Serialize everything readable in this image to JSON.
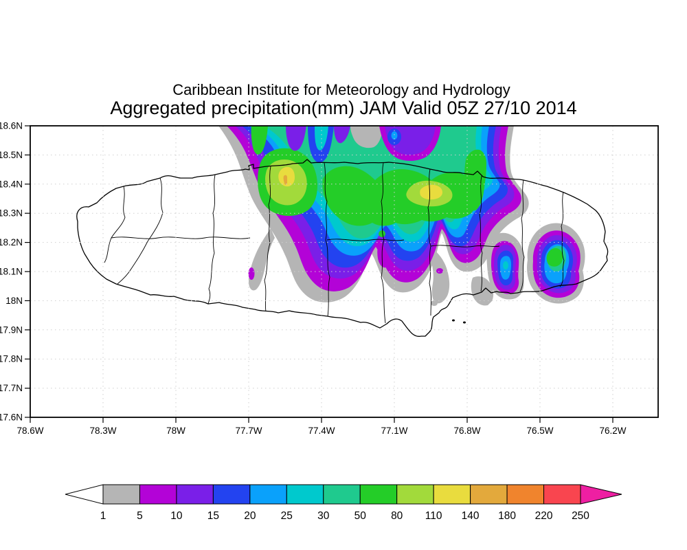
{
  "titles": {
    "line1": "Caribbean Institute for Meteorology and Hydrology",
    "line2": "Aggregated precipitation(mm) JAM Valid 05Z 27/10 2014"
  },
  "axes": {
    "y_labels": [
      "18.6N",
      "18.5N",
      "18.4N",
      "18.3N",
      "18.2N",
      "18.1N",
      "18N",
      "17.9N",
      "17.8N",
      "17.7N",
      "17.6N"
    ],
    "x_labels": [
      "78.6W",
      "78.3W",
      "78W",
      "77.7W",
      "77.4W",
      "77.1W",
      "76.8W",
      "76.5W",
      "76.2W"
    ]
  },
  "legend": {
    "labels": [
      "1",
      "5",
      "10",
      "15",
      "20",
      "25",
      "30",
      "50",
      "80",
      "110",
      "140",
      "180",
      "220",
      "250"
    ],
    "colors": [
      "#b5b5b5",
      "#b303d7",
      "#7a1fe8",
      "#2343f0",
      "#0aa1fb",
      "#00c9cd",
      "#1fca8e",
      "#24cd28",
      "#a2da3b",
      "#e9dc3e",
      "#e3a93c",
      "#f0842d",
      "#f9454f"
    ],
    "under_color": "#ffffff",
    "over_color": "#ee1fa2"
  },
  "chart_data": {
    "type": "contour_map",
    "organization": "Caribbean Institute for Meteorology and Hydrology",
    "variable": "Aggregated precipitation(mm)",
    "region_code": "JAM",
    "valid": "05Z 27/10 2014",
    "lat_ticks": [
      "18.6N",
      "18.5N",
      "18.4N",
      "18.3N",
      "18.2N",
      "18.1N",
      "18N",
      "17.9N",
      "17.8N",
      "17.7N",
      "17.6N"
    ],
    "lon_ticks": [
      "78.6W",
      "78.3W",
      "78W",
      "77.7W",
      "77.4W",
      "77.1W",
      "76.8W",
      "76.5W",
      "76.2W"
    ],
    "contour_levels_mm": [
      1,
      5,
      10,
      15,
      20,
      25,
      30,
      50,
      80,
      110,
      140,
      180,
      220,
      250
    ],
    "level_colors": [
      "#b5b5b5",
      "#b303d7",
      "#7a1fe8",
      "#2343f0",
      "#0aa1fb",
      "#00c9cd",
      "#1fca8e",
      "#24cd28",
      "#a2da3b",
      "#e9dc3e",
      "#e3a93c",
      "#f0842d",
      "#f9454f"
    ],
    "below_min_color": "#ffffff",
    "above_max_color": "#ee1fa2",
    "grid": true,
    "legend_position": "bottom"
  }
}
